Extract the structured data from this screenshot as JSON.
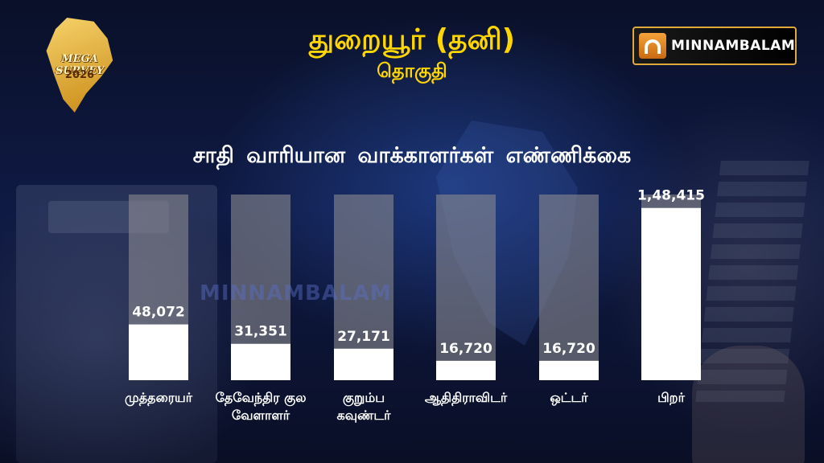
{
  "header": {
    "title": "துறையூர் (தனி)",
    "subtitle": "தொகுதி"
  },
  "logo": {
    "line1": "MEGA SURVEY",
    "line2": "2026"
  },
  "brand": {
    "name": "MINNAMBALAM",
    "watermark": "MINNAMBALAM"
  },
  "colors": {
    "title": "#ffd600",
    "bar_fill": "#ffffff",
    "bar_track": "#8a8a8f"
  },
  "chart_data": {
    "type": "bar",
    "title": "சாதி வாரியான வாக்காளர்கள் எண்ணிக்கை",
    "categories": [
      [
        "முத்தரையர்"
      ],
      [
        "தேவேந்திர குல",
        "வேளாளர்"
      ],
      [
        "குறும்ப",
        "கவுண்டர்"
      ],
      [
        "ஆதிதிராவிடர்"
      ],
      [
        "ஒட்டர்"
      ],
      [
        "பிறர்"
      ]
    ],
    "values": [
      48072,
      31351,
      27171,
      16720,
      16720,
      148415
    ],
    "value_labels": [
      "48,072",
      "31,351",
      "27,171",
      "16,720",
      "16,720",
      "1,48,415"
    ],
    "ylim": [
      0,
      160000
    ],
    "grid": false,
    "legend": "none"
  }
}
